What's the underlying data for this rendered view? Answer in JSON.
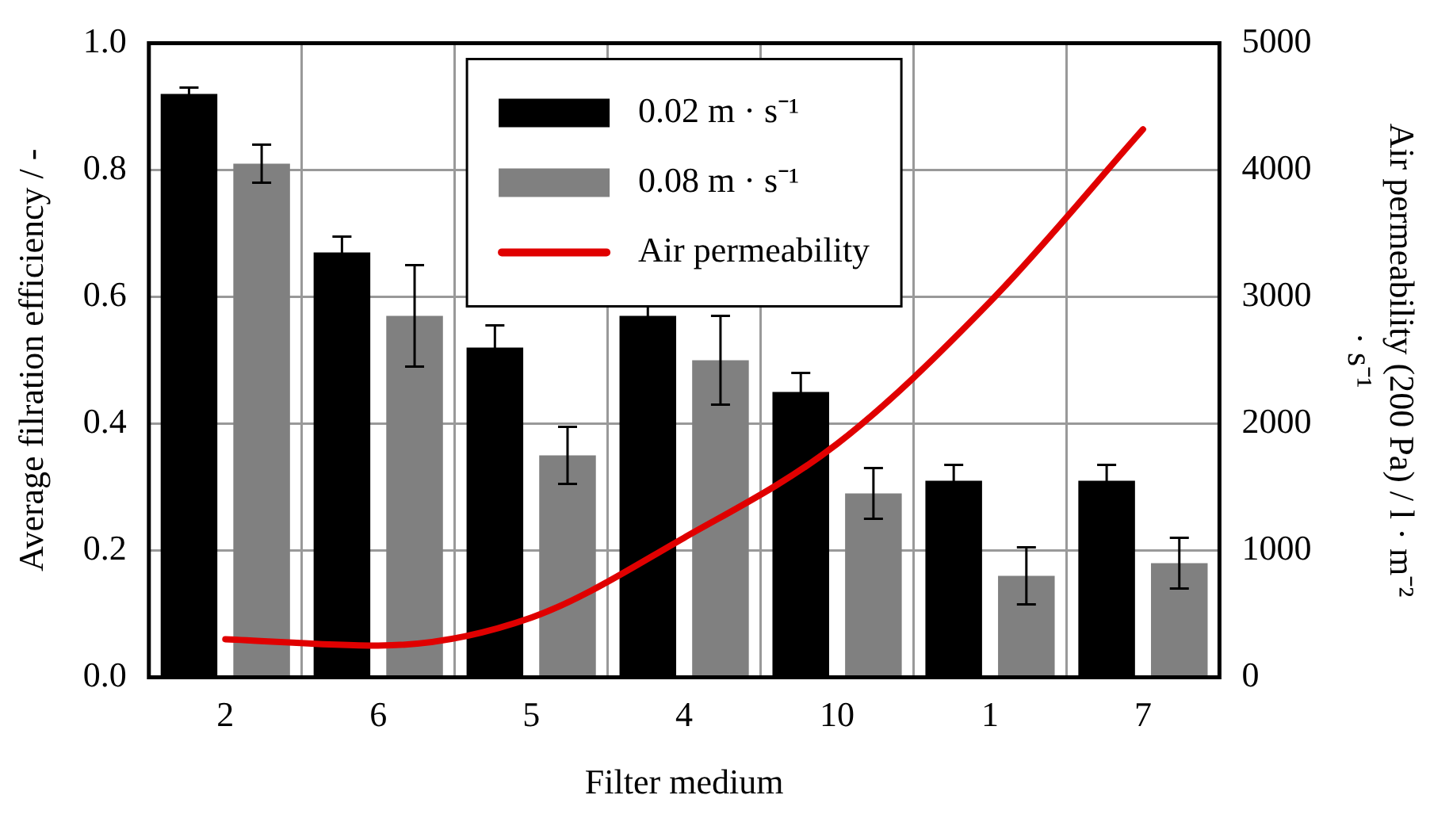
{
  "chart_data": {
    "type": "bar",
    "xlabel": "Filter medium",
    "ylabel": "Average filration efficiency / -",
    "y2label": "Air permeability (200 Pa) / l · m⁻² · s⁻¹",
    "categories": [
      "2",
      "6",
      "5",
      "4",
      "10",
      "1",
      "7"
    ],
    "series": [
      {
        "name": "0.02 m · s⁻¹",
        "color": "#000000",
        "values": [
          0.92,
          0.67,
          0.52,
          0.57,
          0.45,
          0.31,
          0.31
        ],
        "errors": [
          0.01,
          0.025,
          0.035,
          0.025,
          0.03,
          0.025,
          0.025
        ]
      },
      {
        "name": "0.08 m · s⁻¹",
        "color": "#808080",
        "values": [
          0.81,
          0.57,
          0.35,
          0.5,
          0.29,
          0.16,
          0.18
        ],
        "errors": [
          0.03,
          0.08,
          0.045,
          0.07,
          0.04,
          0.045,
          0.04
        ]
      },
      {
        "name": "Air permeability",
        "type": "line",
        "axis": "y2",
        "color": "#e00000",
        "values": [
          300,
          250,
          470,
          1100,
          1840,
          2960,
          4320
        ]
      }
    ],
    "ylim": [
      0,
      1
    ],
    "yticks": [
      {
        "value": 0,
        "label": "0.0"
      },
      {
        "value": 0.2,
        "label": "0.2"
      },
      {
        "value": 0.4,
        "label": "0.4"
      },
      {
        "value": 0.6,
        "label": "0.6"
      },
      {
        "value": 0.8,
        "label": "0.8"
      },
      {
        "value": 1,
        "label": "1.0"
      }
    ],
    "y2lim": [
      0,
      5000
    ],
    "y2ticks": [
      0,
      1000,
      2000,
      3000,
      4000,
      5000
    ],
    "grid": true,
    "legend": "top",
    "marker": "none",
    "line_style": "solid"
  }
}
